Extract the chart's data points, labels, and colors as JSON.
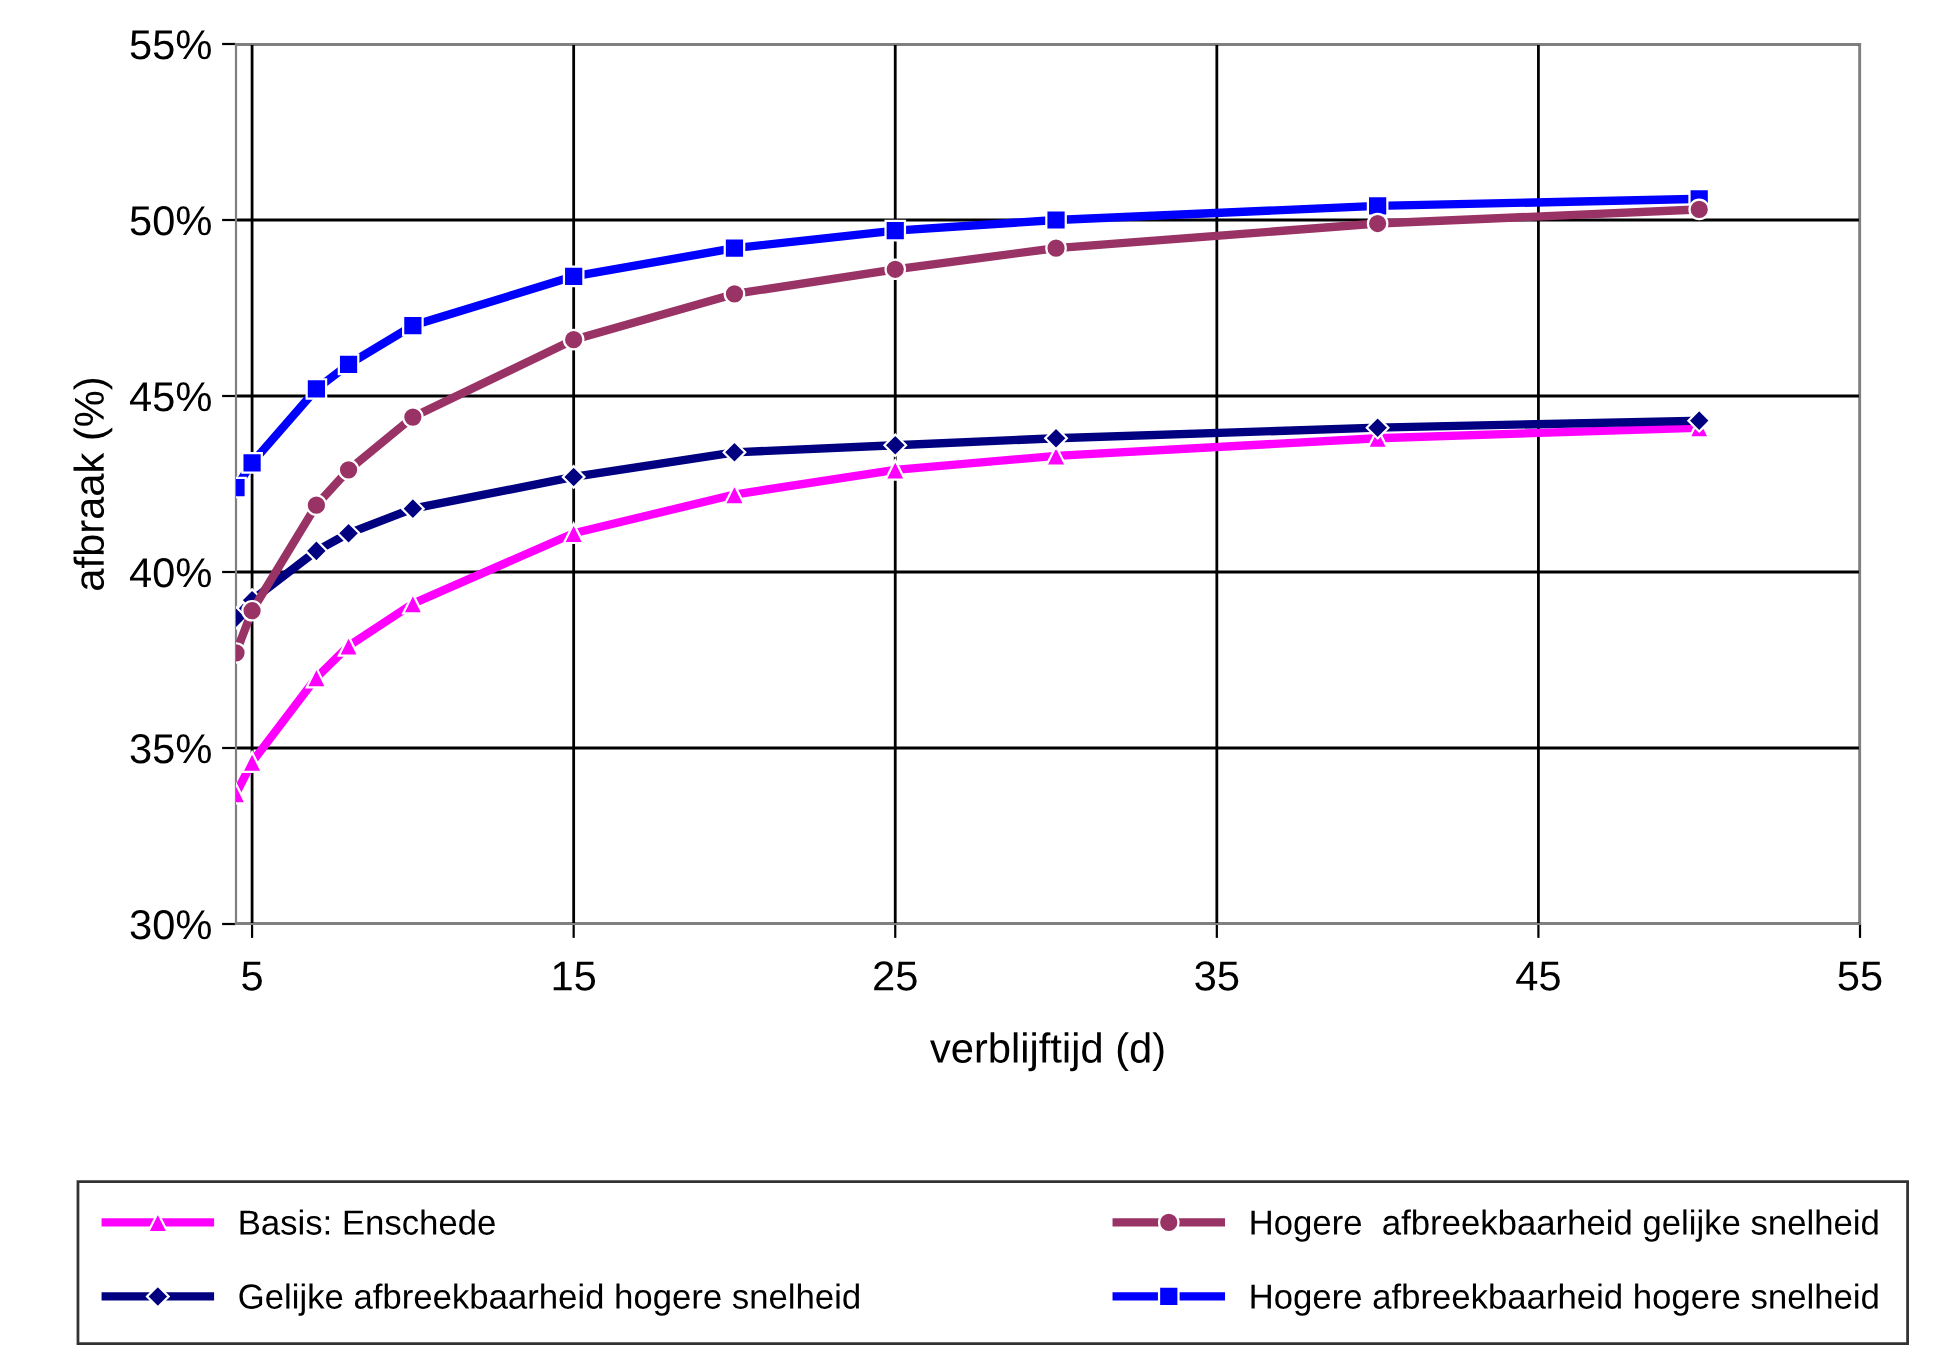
{
  "chart_data": {
    "type": "line",
    "xlabel": "verblijftijd (d)",
    "ylabel": "afbraak (%)",
    "xlim": [
      4.5,
      55
    ],
    "xticks": [
      5,
      15,
      25,
      35,
      45,
      55
    ],
    "ylim": [
      30,
      55
    ],
    "yticks": [
      {
        "value": 30,
        "label": "30%"
      },
      {
        "value": 35,
        "label": "35%"
      },
      {
        "value": 40,
        "label": "40%"
      },
      {
        "value": 45,
        "label": "45%"
      },
      {
        "value": 50,
        "label": "50%"
      },
      {
        "value": 55,
        "label": "55%"
      }
    ],
    "grid": true,
    "legend": "bottom",
    "line_style": "solid",
    "x": [
      4.5,
      5,
      7,
      8,
      10,
      15,
      20,
      25,
      30,
      40,
      50
    ],
    "series": [
      {
        "name": "Basis: Enschede",
        "color": "#ff00ff",
        "marker": "triangle",
        "values": [
          33.7,
          34.6,
          37.0,
          37.9,
          39.1,
          41.1,
          42.2,
          42.9,
          43.3,
          43.8,
          44.1
        ]
      },
      {
        "name": "Hogere  afbreekbaarheid gelijke snelheid",
        "color": "#993366",
        "marker": "circle",
        "values": [
          37.7,
          38.9,
          41.9,
          42.9,
          44.4,
          46.6,
          47.9,
          48.6,
          49.2,
          49.9,
          50.3
        ]
      },
      {
        "name": "Gelijke afbreekbaarheid hogere snelheid",
        "color": "#000080",
        "marker": "diamond",
        "values": [
          38.7,
          39.2,
          40.6,
          41.1,
          41.8,
          42.7,
          43.4,
          43.6,
          43.8,
          44.1,
          44.3
        ]
      },
      {
        "name": "Hogere afbreekbaarheid hogere snelheid",
        "color": "#0000ff",
        "marker": "square",
        "values": [
          42.4,
          43.1,
          45.2,
          45.9,
          47.0,
          48.4,
          49.2,
          49.7,
          50.0,
          50.4,
          50.6
        ]
      }
    ]
  }
}
